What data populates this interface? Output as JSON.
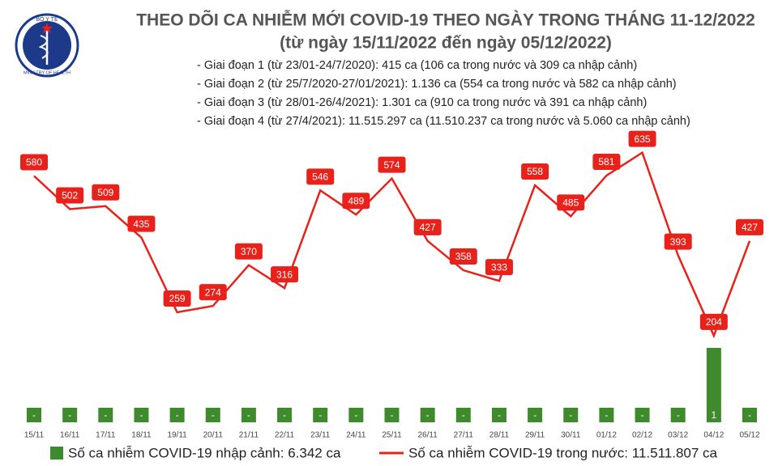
{
  "logo": {
    "top": "BỘ Y TẾ",
    "bottom": "MINISTRY OF HEALTH"
  },
  "chart_data": {
    "type": "bar-line",
    "title": "THEO DÕI CA NHIỄM MỚI COVID-19 THEO NGÀY TRONG THÁNG 11-12/2022",
    "subtitle": "(từ ngày 15/11/2022 đến ngày 05/12/2022)",
    "annotations": [
      "- Giai đoạn 1 (từ 23/01-24/7/2020): 415 ca (106 ca trong nước và 309 ca nhập cảnh)",
      "- Giai đoạn 2 (từ 25/7/2020-27/01/2021): 1.136 ca (554 ca trong nước và 582 ca nhập cảnh)",
      "- Giai đoạn 3 (từ 28/01-26/4/2021): 1.301 ca (910 ca trong nước và 391 ca nhập cảnh)",
      "- Giai đoạn 4 (từ 27/4/2021): 11.515.297 ca (11.510.237 ca trong nước và 5.060 ca nhập cảnh)"
    ],
    "categories": [
      "15/11",
      "16/11",
      "17/11",
      "18/11",
      "19/11",
      "20/11",
      "21/11",
      "22/11",
      "23/11",
      "24/11",
      "25/11",
      "26/11",
      "27/11",
      "28/11",
      "29/11",
      "30/11",
      "01/12",
      "02/12",
      "03/12",
      "04/12",
      "05/12"
    ],
    "ylim": [
      0,
      600
    ],
    "y2lim": [
      0,
      4
    ],
    "series": [
      {
        "name": "Số ca nhiễm COVID-19 nhập cảnh: 6.342 ca",
        "type": "bar",
        "axis": "y2",
        "color": "#3e8a2c",
        "values": [
          0,
          0,
          0,
          0,
          0,
          0,
          0,
          0,
          0,
          0,
          0,
          0,
          0,
          0,
          0,
          0,
          0,
          0,
          0,
          1,
          0
        ],
        "value_labels": [
          "-",
          "-",
          "-",
          "-",
          "-",
          "-",
          "-",
          "-",
          "-",
          "-",
          "-",
          "-",
          "-",
          "-",
          "-",
          "-",
          "-",
          "-",
          "-",
          "1",
          "-"
        ]
      },
      {
        "name": "Số ca nhiễm COVID-19 trong nước: 11.511.807 ca",
        "type": "line",
        "color": "#e8221b",
        "values": [
          580,
          502,
          509,
          435,
          259,
          274,
          370,
          316,
          546,
          489,
          574,
          427,
          358,
          333,
          558,
          485,
          581,
          635,
          393,
          204,
          427
        ]
      }
    ]
  }
}
